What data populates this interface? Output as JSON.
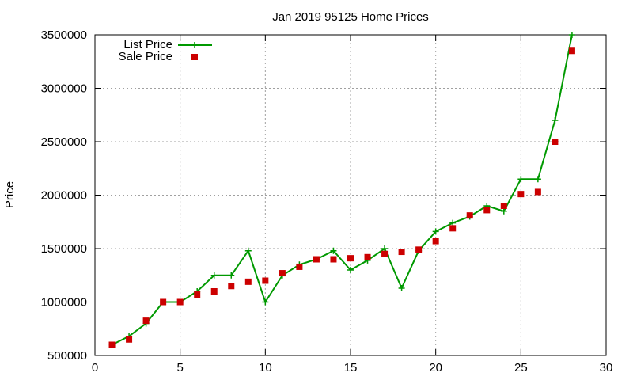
{
  "chart_data": {
    "type": "line",
    "title": "Jan 2019 95125 Home Prices",
    "xlabel": "",
    "ylabel": "Price",
    "xlim": [
      0,
      30
    ],
    "ylim": [
      500000,
      3500000
    ],
    "xticks": [
      0,
      5,
      10,
      15,
      20,
      25,
      30
    ],
    "yticks": [
      500000,
      1000000,
      1500000,
      2000000,
      2500000,
      3000000,
      3500000
    ],
    "grid": true,
    "legend": "top-left",
    "series": [
      {
        "name": "List Price",
        "style": "line-plus",
        "color": "#009900",
        "x": [
          1,
          2,
          3,
          4,
          5,
          6,
          7,
          8,
          9,
          10,
          11,
          12,
          13,
          14,
          15,
          16,
          17,
          18,
          19,
          20,
          21,
          22,
          23,
          24,
          25,
          26,
          27,
          28
        ],
        "y": [
          600000,
          680000,
          800000,
          1000000,
          1000000,
          1100000,
          1250000,
          1250000,
          1480000,
          1000000,
          1250000,
          1350000,
          1400000,
          1480000,
          1300000,
          1390000,
          1500000,
          1130000,
          1480000,
          1660000,
          1740000,
          1800000,
          1900000,
          1850000,
          2150000,
          2150000,
          2700000,
          3500000
        ]
      },
      {
        "name": "Sale Price",
        "style": "square",
        "color": "#cc0000",
        "x": [
          1,
          2,
          3,
          4,
          5,
          6,
          7,
          8,
          9,
          10,
          11,
          12,
          13,
          14,
          15,
          16,
          17,
          18,
          19,
          20,
          21,
          22,
          23,
          24,
          25,
          26,
          27,
          28
        ],
        "y": [
          600000,
          650000,
          825000,
          1000000,
          1000000,
          1070000,
          1100000,
          1150000,
          1190000,
          1200000,
          1270000,
          1330000,
          1400000,
          1400000,
          1410000,
          1420000,
          1450000,
          1470000,
          1490000,
          1570000,
          1690000,
          1810000,
          1860000,
          1900000,
          2010000,
          2030000,
          2500000,
          3350000
        ]
      }
    ]
  }
}
